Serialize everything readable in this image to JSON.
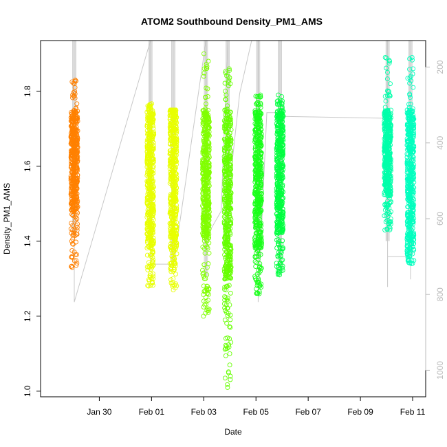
{
  "chart_data": {
    "type": "scatter",
    "title": "ATOM2 Southbound Density_PM1_AMS",
    "xlabel": "Date",
    "ylabel": "Density_PM1_AMS",
    "xlim": [
      "2017-01-27T18:00",
      "2017-02-11T12:00"
    ],
    "ylim": [
      0.985,
      1.935
    ],
    "x_ticks": [
      {
        "value": "2017-01-30",
        "label": "Jan 30"
      },
      {
        "value": "2017-02-01",
        "label": "Feb 01"
      },
      {
        "value": "2017-02-03",
        "label": "Feb 03"
      },
      {
        "value": "2017-02-05",
        "label": "Feb 05"
      },
      {
        "value": "2017-02-07",
        "label": "Feb 07"
      },
      {
        "value": "2017-02-09",
        "label": "Feb 09"
      },
      {
        "value": "2017-02-11",
        "label": "Feb 11"
      }
    ],
    "y_ticks": [
      1.0,
      1.2,
      1.4,
      1.6,
      1.8
    ],
    "right_axis": {
      "ylim": [
        1070,
        130
      ],
      "ticks": [
        200,
        400,
        600,
        800,
        1000
      ],
      "color": "#bbbbbb"
    },
    "grid": false,
    "legend": "none",
    "marker": "open-circle",
    "series": [
      {
        "x": "2017-01-29T01:00",
        "color": "#FF8000",
        "min": 1.33,
        "max": 1.83,
        "dense": [
          1.48,
          1.75
        ],
        "outliers": [
          1.33,
          1.4,
          1.43,
          1.46,
          1.79,
          1.81,
          1.82,
          1.83
        ]
      },
      {
        "x": "2017-01-31T23:00",
        "color": "#E8FF00",
        "min": 1.28,
        "max": 1.77,
        "dense": [
          1.38,
          1.75
        ],
        "outliers": [
          1.28,
          1.29,
          1.3,
          1.33,
          1.35
        ]
      },
      {
        "x": "2017-02-01T20:00",
        "color": "#E8FF00",
        "min": 1.27,
        "max": 1.75,
        "dense": [
          1.38,
          1.75
        ],
        "outliers": [
          1.27,
          1.28,
          1.3,
          1.33,
          1.34
        ]
      },
      {
        "x": "2017-02-03T02:00",
        "color": "#80FF00",
        "min": 1.2,
        "max": 1.9,
        "dense": [
          1.4,
          1.75
        ],
        "outliers": [
          1.2,
          1.22,
          1.25,
          1.27,
          1.28,
          1.3,
          1.33,
          1.38,
          1.86,
          1.88,
          1.9
        ]
      },
      {
        "x": "2017-02-03T22:00",
        "color": "#66FF00",
        "min": 1.01,
        "max": 1.86,
        "dense": [
          1.3,
          1.75
        ],
        "outliers": [
          1.01,
          1.04,
          1.07,
          1.1,
          1.12,
          1.14,
          1.17,
          1.19,
          1.21,
          1.23,
          1.25,
          1.27,
          1.28,
          1.8,
          1.82,
          1.84,
          1.86
        ]
      },
      {
        "x": "2017-02-05T02:00",
        "color": "#1AFF1A",
        "min": 1.26,
        "max": 1.79,
        "dense": [
          1.38,
          1.75
        ],
        "outliers": [
          1.26,
          1.28,
          1.29,
          1.32,
          1.34,
          1.77,
          1.79
        ]
      },
      {
        "x": "2017-02-05T22:00",
        "color": "#00FF40",
        "min": 1.31,
        "max": 1.79,
        "dense": [
          1.42,
          1.75
        ],
        "outliers": [
          1.31,
          1.36,
          1.38,
          1.77,
          1.79
        ]
      },
      {
        "x": "2017-02-10T01:00",
        "color": "#00FFAA",
        "min": 1.43,
        "max": 1.89,
        "dense": [
          1.52,
          1.75
        ],
        "outliers": [
          1.43,
          1.49,
          1.8,
          1.82,
          1.85,
          1.88,
          1.89
        ]
      },
      {
        "x": "2017-02-10T22:00",
        "color": "#00FFBF",
        "min": 1.34,
        "max": 1.89,
        "dense": [
          1.4,
          1.75
        ],
        "outliers": [
          1.34,
          1.35,
          1.36,
          1.38,
          1.79,
          1.81,
          1.84,
          1.86,
          1.89
        ]
      }
    ],
    "track_line": {
      "color": "#c8c8c8",
      "points": [
        {
          "x": "2017-01-29T01:00",
          "r": 130
        },
        {
          "x": "2017-01-29T01:00",
          "r": 820
        },
        {
          "x": "2017-01-31T23:00",
          "r": 130
        },
        {
          "x": "2017-01-31T23:00",
          "r": 720
        },
        {
          "x": "2017-02-01T20:00",
          "r": 720
        },
        {
          "x": "2017-02-01T20:00",
          "r": 130
        },
        {
          "x": "2017-02-01T20:00",
          "r": 730
        },
        {
          "x": "2017-02-03T02:00",
          "r": 130
        },
        {
          "x": "2017-02-03T02:00",
          "r": 650
        },
        {
          "x": "2017-02-03T16:00",
          "r": 580
        },
        {
          "x": "2017-02-03T22:00",
          "r": 130
        },
        {
          "x": "2017-02-03T22:00",
          "r": 560
        },
        {
          "x": "2017-02-04T09:00",
          "r": 270
        },
        {
          "x": "2017-02-04T20:00",
          "r": 130
        },
        {
          "x": "2017-02-05T02:00",
          "r": 130
        },
        {
          "x": "2017-02-05T02:00",
          "r": 820
        },
        {
          "x": "2017-02-05T10:00",
          "r": 320
        },
        {
          "x": "2017-02-05T22:00",
          "r": 320
        },
        {
          "x": "2017-02-05T22:00",
          "r": 130
        },
        {
          "x": "2017-02-05T22:00",
          "r": 740
        },
        {
          "x": "2017-02-06T01:00",
          "r": 330
        },
        {
          "x": "2017-02-10T01:00",
          "r": 335
        },
        {
          "x": "2017-02-10T01:00",
          "r": 130
        },
        {
          "x": "2017-02-10T01:00",
          "r": 780
        },
        {
          "x": "2017-02-10T01:00",
          "r": 700
        },
        {
          "x": "2017-02-10T22:00",
          "r": 700
        },
        {
          "x": "2017-02-10T22:00",
          "r": 130
        },
        {
          "x": "2017-02-10T22:00",
          "r": 760
        }
      ]
    }
  }
}
